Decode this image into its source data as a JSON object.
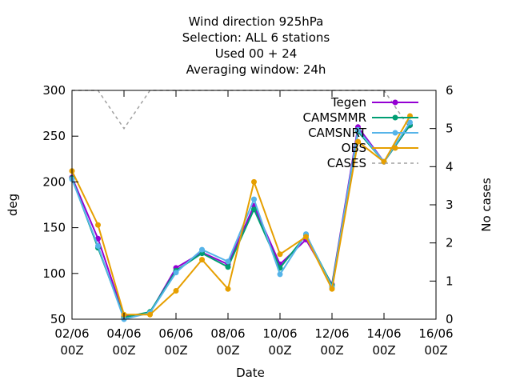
{
  "chart_data": {
    "type": "line",
    "title_lines": [
      "Wind direction 925hPa",
      "Selection: ALL      6 stations",
      "Used  00 + 24",
      "Averaging window: 24h"
    ],
    "xlabel": "Date",
    "ylabel": "deg",
    "y2label": "No cases",
    "xlim": [
      2,
      16
    ],
    "ylim": [
      50,
      300
    ],
    "y2lim": [
      0,
      6
    ],
    "x_ticks": [
      {
        "value": 2,
        "line1": "02/06",
        "line2": "00Z"
      },
      {
        "value": 4,
        "line1": "04/06",
        "line2": "00Z"
      },
      {
        "value": 6,
        "line1": "06/06",
        "line2": "00Z"
      },
      {
        "value": 8,
        "line1": "08/06",
        "line2": "00Z"
      },
      {
        "value": 10,
        "line1": "10/06",
        "line2": "00Z"
      },
      {
        "value": 12,
        "line1": "12/06",
        "line2": "00Z"
      },
      {
        "value": 14,
        "line1": "14/06",
        "line2": "00Z"
      },
      {
        "value": 16,
        "line1": "16/06",
        "line2": "00Z"
      }
    ],
    "y_ticks": [
      50,
      100,
      150,
      200,
      250,
      300
    ],
    "y2_ticks": [
      0,
      1,
      2,
      3,
      4,
      5,
      6
    ],
    "grid": false,
    "legend_position": "top-right",
    "x": [
      2,
      3,
      4,
      5,
      6,
      7,
      8,
      9,
      10,
      11,
      12,
      13,
      14,
      15
    ],
    "series": [
      {
        "name": "Tegen",
        "color": "#9400d3",
        "marker": "circle",
        "values": [
          205,
          138,
          53,
          57,
          106,
          123,
          110,
          174,
          110,
          137,
          88,
          260,
          222,
          262
        ]
      },
      {
        "name": "CAMSMMR",
        "color": "#009e73",
        "marker": "circle",
        "values": [
          204,
          128,
          52,
          58,
          103,
          122,
          107,
          170,
          106,
          142,
          87,
          255,
          222,
          262
        ]
      },
      {
        "name": "CAMSNRT",
        "color": "#56b4e9",
        "marker": "circle",
        "values": [
          203,
          130,
          50,
          57,
          101,
          126,
          113,
          181,
          99,
          143,
          85,
          257,
          222,
          265
        ]
      },
      {
        "name": "OBS",
        "color": "#e69f00",
        "marker": "circle",
        "values": [
          212,
          153,
          55,
          55,
          81,
          115,
          83,
          200,
          121,
          140,
          83,
          244,
          222,
          272
        ]
      },
      {
        "name": "CASES",
        "color": "#a0a0a0",
        "axis": "y2",
        "style": "dashed",
        "values": [
          6,
          6,
          5,
          6,
          6,
          6,
          6,
          6,
          6,
          6,
          6,
          6,
          6,
          5
        ]
      }
    ]
  }
}
